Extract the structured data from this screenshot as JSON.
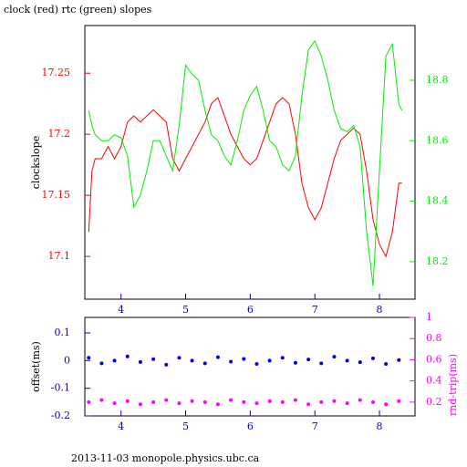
{
  "chart_data": [
    {
      "type": "line",
      "title": "clock (red) rtc (green) slopes",
      "y_label": "clockslope",
      "xlim": [
        3.44,
        8.55
      ],
      "xticks": [
        4,
        5,
        6,
        7,
        8
      ],
      "ylim": [
        17.065,
        17.289
      ],
      "yticks": [
        17.1,
        17.15,
        17.2,
        17.25
      ],
      "y2lim": [
        18.076,
        18.981
      ],
      "y2ticks": [
        18.2,
        18.4,
        18.6,
        18.8
      ],
      "x": [
        3.5,
        3.55,
        3.6,
        3.7,
        3.8,
        3.9,
        4.0,
        4.1,
        4.2,
        4.3,
        4.4,
        4.5,
        4.6,
        4.7,
        4.8,
        4.9,
        5.0,
        5.1,
        5.2,
        5.3,
        5.4,
        5.5,
        5.6,
        5.7,
        5.8,
        5.9,
        6.0,
        6.1,
        6.2,
        6.3,
        6.4,
        6.5,
        6.6,
        6.7,
        6.8,
        6.9,
        7.0,
        7.1,
        7.2,
        7.3,
        7.4,
        7.5,
        7.6,
        7.7,
        7.8,
        7.9,
        8.0,
        8.1,
        8.2,
        8.3,
        8.35
      ],
      "series": [
        {
          "name": "clock",
          "color": "#ff0000",
          "axis": "y",
          "values": [
            17.12,
            17.17,
            17.18,
            17.18,
            17.19,
            17.18,
            17.19,
            17.21,
            17.215,
            17.21,
            17.215,
            17.22,
            17.215,
            17.21,
            17.18,
            17.17,
            17.18,
            17.19,
            17.2,
            17.21,
            17.225,
            17.23,
            17.215,
            17.2,
            17.19,
            17.18,
            17.175,
            17.18,
            17.195,
            17.21,
            17.225,
            17.23,
            17.225,
            17.2,
            17.16,
            17.14,
            17.13,
            17.14,
            17.16,
            17.18,
            17.195,
            17.2,
            17.205,
            17.2,
            17.17,
            17.13,
            17.11,
            17.1,
            17.12,
            17.16,
            17.16
          ]
        },
        {
          "name": "rtc",
          "color": "#00ee00",
          "axis": "y2",
          "values": [
            18.7,
            18.65,
            18.62,
            18.6,
            18.6,
            18.62,
            18.61,
            18.55,
            18.38,
            18.42,
            18.5,
            18.6,
            18.6,
            18.55,
            18.5,
            18.65,
            18.85,
            18.82,
            18.8,
            18.7,
            18.62,
            18.6,
            18.55,
            18.52,
            18.6,
            18.7,
            18.75,
            18.78,
            18.7,
            18.6,
            18.58,
            18.52,
            18.5,
            18.55,
            18.75,
            18.9,
            18.93,
            18.88,
            18.8,
            18.7,
            18.64,
            18.63,
            18.65,
            18.58,
            18.3,
            18.12,
            18.5,
            18.88,
            18.92,
            18.72,
            18.7
          ]
        }
      ]
    },
    {
      "type": "scatter",
      "y_label": "offset(ms)",
      "y2_label": "rnd-trip(ms)",
      "xlim": [
        3.44,
        8.55
      ],
      "xticks": [
        4,
        5,
        6,
        7,
        8
      ],
      "ylim": [
        -0.2,
        0.156
      ],
      "yticks": [
        -0.2,
        -0.1,
        0,
        0.1
      ],
      "y2lim": [
        0.07,
        1
      ],
      "y2ticks": [
        0.2,
        0.4,
        0.6,
        0.8,
        1
      ],
      "x": [
        3.5,
        3.7,
        3.9,
        4.1,
        4.3,
        4.5,
        4.7,
        4.9,
        5.1,
        5.3,
        5.5,
        5.7,
        5.9,
        6.1,
        6.3,
        6.5,
        6.7,
        6.9,
        7.1,
        7.3,
        7.5,
        7.7,
        7.9,
        8.1,
        8.3
      ],
      "series": [
        {
          "name": "offset",
          "color": "#0000ee",
          "axis": "y",
          "values": [
            0.01,
            -0.01,
            0.0,
            0.015,
            -0.005,
            0.005,
            -0.015,
            0.01,
            0.0,
            -0.01,
            0.012,
            -0.004,
            0.006,
            -0.012,
            0.0,
            0.01,
            -0.008,
            0.004,
            -0.01,
            0.014,
            0.0,
            -0.006,
            0.008,
            -0.012,
            0.002
          ]
        },
        {
          "name": "rnd-trip",
          "color": "#ff00ff",
          "axis": "y2",
          "values": [
            0.2,
            0.22,
            0.19,
            0.21,
            0.18,
            0.2,
            0.22,
            0.19,
            0.21,
            0.2,
            0.18,
            0.22,
            0.2,
            0.19,
            0.21,
            0.2,
            0.22,
            0.18,
            0.2,
            0.21,
            0.19,
            0.22,
            0.2,
            0.18,
            0.21
          ]
        }
      ]
    }
  ],
  "footer": "2013-11-03 monopole.physics.ubc.ca"
}
